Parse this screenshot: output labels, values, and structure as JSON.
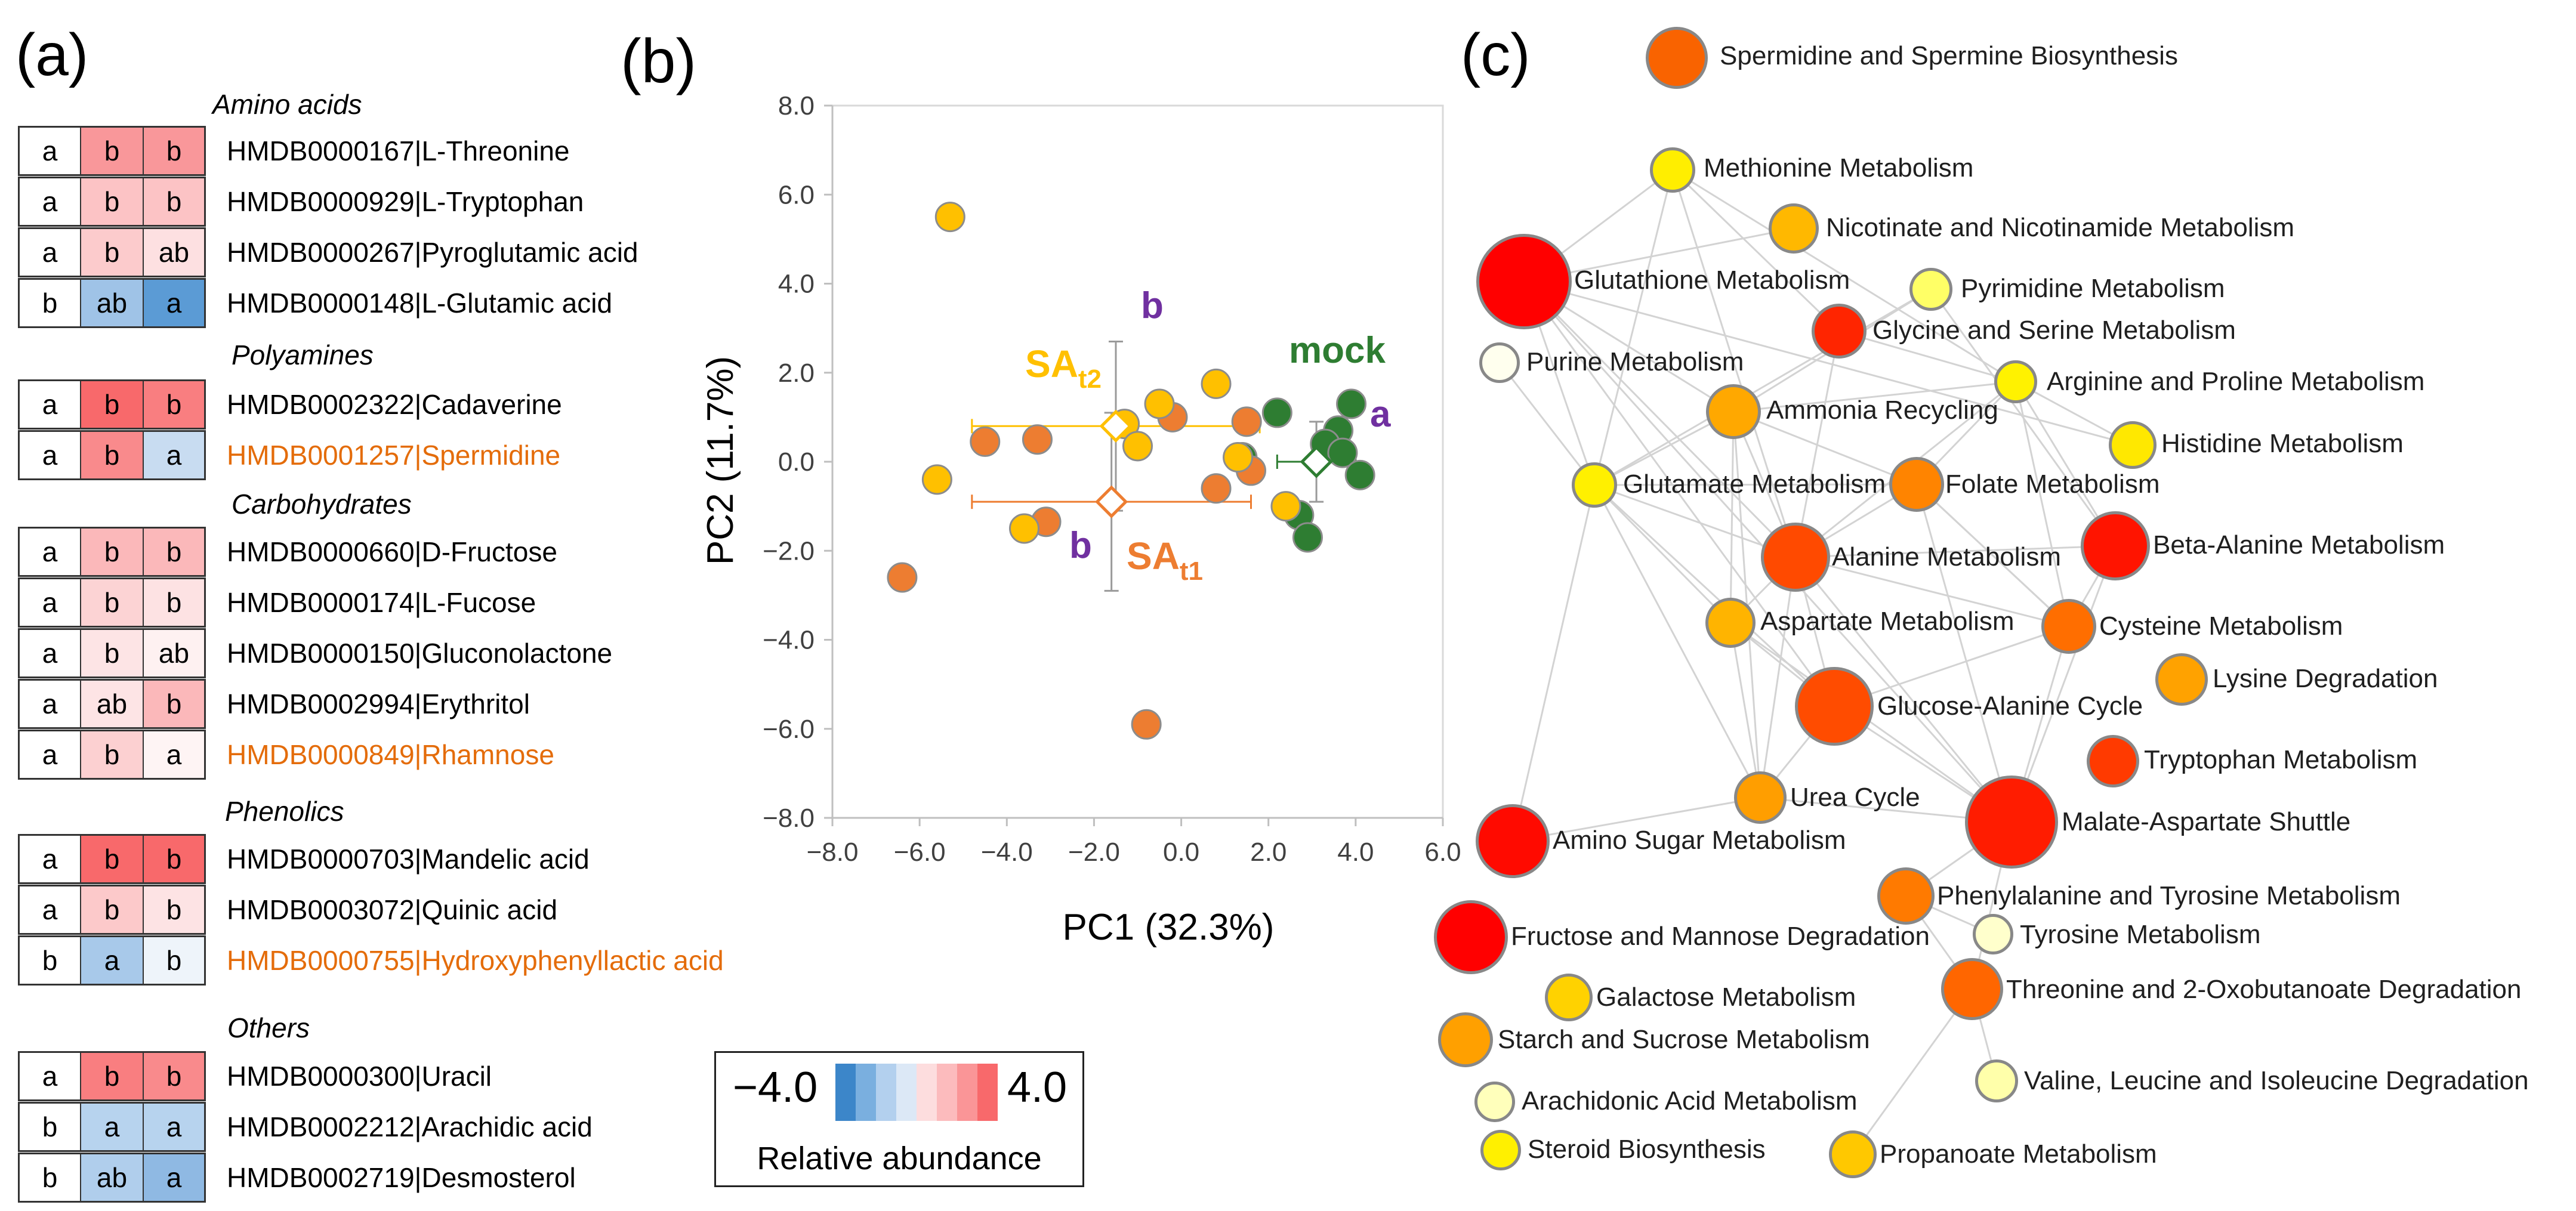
{
  "panels": {
    "a": "(a)",
    "b": "(b)",
    "c": "(c)"
  },
  "colors": {
    "highlight": "#E46C0A",
    "red_strong": "#F8696B",
    "red_mid": "#FA9A9C",
    "red_light": "#FCC9CA",
    "red_faint": "#FDE3E4",
    "blue_strong": "#5B9BD5",
    "blue_mid": "#8FB9E3",
    "blue_light": "#C5DAF1",
    "blue_faint": "#E5EEF8",
    "white": "#FFFFFF"
  },
  "heatmap": {
    "sections": [
      {
        "title": "Amino acids",
        "rows": [
          {
            "letters": [
              "a",
              "b",
              "b"
            ],
            "cell_colors": [
              "#FFFFFF",
              "#F9979A",
              "#F9979A"
            ],
            "label": "HMDB0000167|L-Threonine",
            "highlight": false
          },
          {
            "letters": [
              "a",
              "b",
              "b"
            ],
            "cell_colors": [
              "#FFFFFF",
              "#FCC3C5",
              "#FCC3C5"
            ],
            "label": "HMDB0000929|L-Tryptophan",
            "highlight": false
          },
          {
            "letters": [
              "a",
              "b",
              "ab"
            ],
            "cell_colors": [
              "#FFFFFF",
              "#FCCBCC",
              "#FDE0E1"
            ],
            "label": "HMDB0000267|Pyroglutamic acid",
            "highlight": false
          },
          {
            "letters": [
              "b",
              "ab",
              "a"
            ],
            "cell_colors": [
              "#FFFFFF",
              "#9FC3E7",
              "#5B9BD5"
            ],
            "label": "HMDB0000148|L-Glutamic acid",
            "highlight": false
          }
        ]
      },
      {
        "title": "Polyamines",
        "rows": [
          {
            "letters": [
              "a",
              "b",
              "b"
            ],
            "cell_colors": [
              "#FFFFFF",
              "#F8696B",
              "#F97E80"
            ],
            "label": "HMDB0002322|Cadaverine",
            "highlight": false
          },
          {
            "letters": [
              "a",
              "b",
              "a"
            ],
            "cell_colors": [
              "#FFFFFF",
              "#F98A8C",
              "#C8DCF1"
            ],
            "label": "HMDB0001257|Spermidine",
            "highlight": true
          }
        ]
      },
      {
        "title": "Carbohydrates",
        "rows": [
          {
            "letters": [
              "a",
              "b",
              "b"
            ],
            "cell_colors": [
              "#FFFFFF",
              "#FBB8BA",
              "#FBB8BA"
            ],
            "label": "HMDB0000660|D-Fructose",
            "highlight": false
          },
          {
            "letters": [
              "a",
              "b",
              "b"
            ],
            "cell_colors": [
              "#FFFFFF",
              "#FCD3D4",
              "#FDE2E3"
            ],
            "label": "HMDB0000174|L-Fucose",
            "highlight": false
          },
          {
            "letters": [
              "a",
              "b",
              "ab"
            ],
            "cell_colors": [
              "#FFFFFF",
              "#FDE4E5",
              "#FEF1F1"
            ],
            "label": "HMDB0000150|Gluconolactone",
            "highlight": false
          },
          {
            "letters": [
              "a",
              "ab",
              "b"
            ],
            "cell_colors": [
              "#FFFFFF",
              "#FDE4E5",
              "#FBB8BA"
            ],
            "label": "HMDB0002994|Erythritol",
            "highlight": false
          },
          {
            "letters": [
              "a",
              "b",
              "a"
            ],
            "cell_colors": [
              "#FFFFFF",
              "#FCD0D1",
              "#FEF4F4"
            ],
            "label": "HMDB0000849|Rhamnose",
            "highlight": true
          }
        ]
      },
      {
        "title": "Phenolics",
        "rows": [
          {
            "letters": [
              "a",
              "b",
              "b"
            ],
            "cell_colors": [
              "#FFFFFF",
              "#F8696B",
              "#F8696B"
            ],
            "label": "HMDB0000703|Mandelic acid",
            "highlight": false
          },
          {
            "letters": [
              "a",
              "b",
              "b"
            ],
            "cell_colors": [
              "#FFFFFF",
              "#FCC9CA",
              "#FDE3E4"
            ],
            "label": "HMDB0003072|Quinic acid",
            "highlight": false
          },
          {
            "letters": [
              "b",
              "a",
              "b"
            ],
            "cell_colors": [
              "#FFFFFF",
              "#A8C9EA",
              "#EEF4FA"
            ],
            "label": "HMDB0000755|Hydroxyphenyllactic acid",
            "highlight": true
          }
        ]
      },
      {
        "title": "Others",
        "rows": [
          {
            "letters": [
              "a",
              "b",
              "b"
            ],
            "cell_colors": [
              "#FFFFFF",
              "#F97E80",
              "#F98A8C"
            ],
            "label": "HMDB0000300|Uracil",
            "highlight": false
          },
          {
            "letters": [
              "b",
              "a",
              "a"
            ],
            "cell_colors": [
              "#FFFFFF",
              "#B7D3EE",
              "#B7D3EE"
            ],
            "label": "HMDB0002212|Arachidic acid",
            "highlight": false
          },
          {
            "letters": [
              "b",
              "ab",
              "a"
            ],
            "cell_colors": [
              "#FFFFFF",
              "#B0CEEC",
              "#8FB9E3"
            ],
            "label": "HMDB0002719|Desmosterol",
            "highlight": false
          }
        ]
      }
    ],
    "legend": {
      "min_label": "−4.0",
      "max_label": "4.0",
      "title": "Relative abundance",
      "swatches": [
        "#3C86C9",
        "#7AAFDF",
        "#B3D0EE",
        "#DCE8F6",
        "#FDDDDE",
        "#FCBBBD",
        "#FA9597",
        "#F8696B"
      ]
    }
  },
  "chart_data": {
    "type": "scatter",
    "title": "",
    "xlabel": "PC1 (32.3%)",
    "ylabel": "PC2 (11.7%)",
    "xlim": [
      -8.0,
      6.0
    ],
    "ylim": [
      -8.0,
      8.0
    ],
    "xticks": [
      -8,
      -6,
      -4,
      -2,
      0,
      2,
      4,
      6
    ],
    "yticks": [
      -8,
      -6,
      -4,
      -2,
      0,
      2,
      4,
      6,
      8
    ],
    "xtick_labels": [
      "−8.0",
      "−6.0",
      "−4.0",
      "−2.0",
      "0.0",
      "2.0",
      "4.0",
      "6.0"
    ],
    "ytick_labels": [
      "−8.0",
      "−6.0",
      "−4.0",
      "−2.0",
      "0.0",
      "2.0",
      "4.0",
      "6.0",
      "8.0"
    ],
    "series": [
      {
        "name": "mock",
        "color": "#2E7D32",
        "points": [
          [
            2.2,
            1.1
          ],
          [
            3.9,
            1.3
          ],
          [
            3.6,
            0.7
          ],
          [
            3.3,
            0.4
          ],
          [
            3.7,
            0.2
          ],
          [
            1.4,
            0.1
          ],
          [
            4.1,
            -0.3
          ],
          [
            2.7,
            -1.2
          ],
          [
            2.9,
            -1.7
          ]
        ]
      },
      {
        "name": "SAt1",
        "color": "#ED7D31",
        "points": [
          [
            -4.5,
            0.45
          ],
          [
            -3.3,
            0.5
          ],
          [
            -0.2,
            1.0
          ],
          [
            1.5,
            0.9
          ],
          [
            -6.4,
            -2.6
          ],
          [
            -3.1,
            -1.35
          ],
          [
            0.8,
            -0.6
          ],
          [
            1.6,
            -0.2
          ],
          [
            -0.8,
            -5.9
          ]
        ]
      },
      {
        "name": "SAt2",
        "color": "#FFC000",
        "points": [
          [
            -5.3,
            5.5
          ],
          [
            -5.6,
            -0.4
          ],
          [
            -3.6,
            -1.5
          ],
          [
            -1.3,
            0.85
          ],
          [
            -0.5,
            1.3
          ],
          [
            -1.0,
            0.35
          ],
          [
            0.8,
            1.75
          ],
          [
            1.3,
            0.1
          ],
          [
            2.4,
            -1.0
          ]
        ]
      }
    ],
    "centroids": [
      {
        "name": "mock",
        "color": "#2E7D32",
        "x": 3.1,
        "y": 0.0,
        "xerr": 0.9,
        "yerr": 0.9
      },
      {
        "name": "SAt2",
        "color": "#FFC000",
        "x": -1.5,
        "y": 0.8,
        "xerr": 3.3,
        "yerr": 1.9
      },
      {
        "name": "SAt1",
        "color": "#ED7D31",
        "x": -1.6,
        "y": -0.9,
        "xerr": 3.2,
        "yerr": 2.0
      }
    ],
    "annotations": [
      {
        "text": "mock",
        "color": "#2E7D32"
      },
      {
        "text": "a",
        "color": "#7030A0"
      },
      {
        "text": "b",
        "color": "#7030A0"
      },
      {
        "text": "b",
        "color": "#7030A0"
      },
      {
        "text": "SA",
        "sub": "t2",
        "color": "#FFC000"
      },
      {
        "text": "SA",
        "sub": "t1",
        "color": "#ED7D31"
      }
    ]
  },
  "pathways": [
    {
      "name": "Spermidine and Spermine Biosynthesis",
      "color": "#F96300"
    },
    {
      "name": "Methionine Metabolism",
      "color": "#FFEE00"
    },
    {
      "name": "Nicotinate and Nicotinamide Metabolism",
      "color": "#FFB800"
    },
    {
      "name": "Glutathione Metabolism",
      "color": "#FF0000"
    },
    {
      "name": "Pyrimidine Metabolism",
      "color": "#FFFF66"
    },
    {
      "name": "Glycine and Serine Metabolism",
      "color": "#FF2500"
    },
    {
      "name": "Purine Metabolism",
      "color": "#FFFFEE"
    },
    {
      "name": "Arginine and Proline Metabolism",
      "color": "#FFF200"
    },
    {
      "name": "Ammonia Recycling",
      "color": "#FFA800"
    },
    {
      "name": "Histidine Metabolism",
      "color": "#FFE800"
    },
    {
      "name": "Glutamate Metabolism",
      "color": "#FFF000"
    },
    {
      "name": "Folate Metabolism",
      "color": "#FF8400"
    },
    {
      "name": "Alanine Metabolism",
      "color": "#FF4A00"
    },
    {
      "name": "Beta-Alanine Metabolism",
      "color": "#FF1400"
    },
    {
      "name": "Aspartate Metabolism",
      "color": "#FFB400"
    },
    {
      "name": "Cysteine Metabolism",
      "color": "#FF6E00"
    },
    {
      "name": "Lysine Degradation",
      "color": "#FFA200"
    },
    {
      "name": "Glucose-Alanine Cycle",
      "color": "#FF4C00"
    },
    {
      "name": "Tryptophan Metabolism",
      "color": "#FF3A00"
    },
    {
      "name": "Urea Cycle",
      "color": "#FF9E00"
    },
    {
      "name": "Malate-Aspartate Shuttle",
      "color": "#FF1C00"
    },
    {
      "name": "Amino Sugar Metabolism",
      "color": "#FF0A00"
    },
    {
      "name": "Phenylalanine and Tyrosine Metabolism",
      "color": "#FF7A00"
    },
    {
      "name": "Fructose and Mannose Degradation",
      "color": "#FF0000"
    },
    {
      "name": "Tyrosine Metabolism",
      "color": "#FFFFCC"
    },
    {
      "name": "Galactose Metabolism",
      "color": "#FFD200"
    },
    {
      "name": "Threonine and 2-Oxobutanoate Degradation",
      "color": "#FF6600"
    },
    {
      "name": "Starch and Sucrose Metabolism",
      "color": "#FFA000"
    },
    {
      "name": "Arachidonic Acid Metabolism",
      "color": "#FFFFBB"
    },
    {
      "name": "Valine, Leucine and Isoleucine Degradation",
      "color": "#FFFFAA"
    },
    {
      "name": "Steroid Biosynthesis",
      "color": "#FFF000"
    },
    {
      "name": "Propanoate Metabolism",
      "color": "#FFC800"
    }
  ]
}
